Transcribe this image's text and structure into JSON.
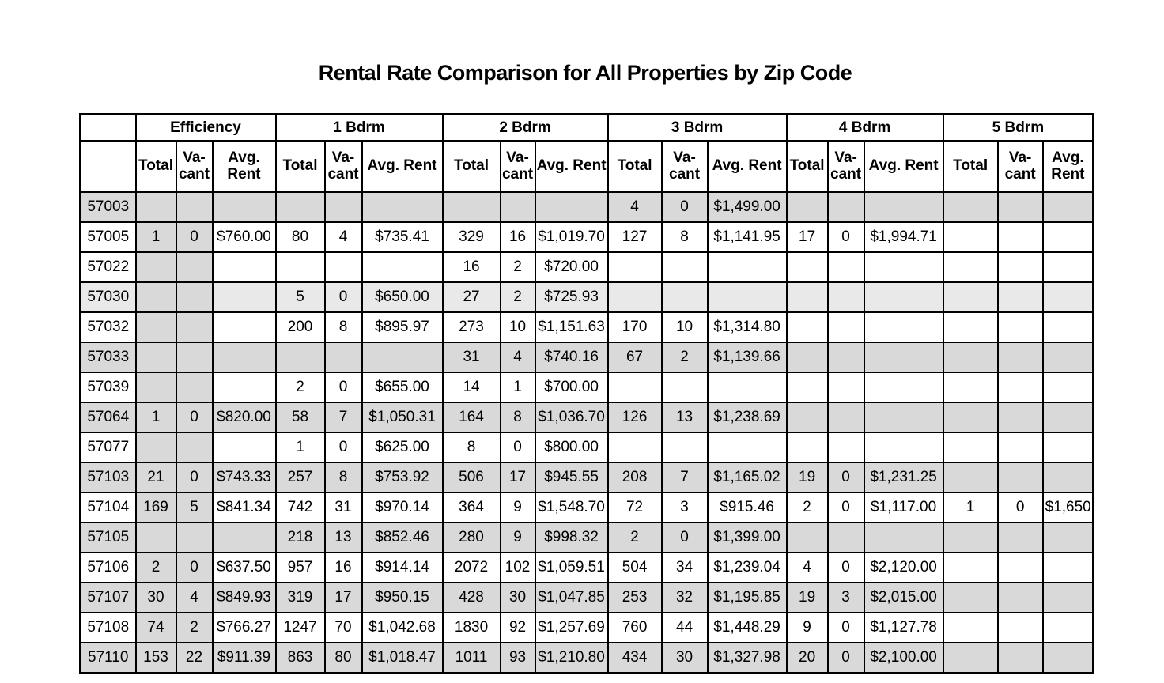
{
  "title": "Rental Rate Comparison for All Properties by Zip Code",
  "colors": {
    "row_gray": "#d9d9d9",
    "row_light_gray": "#e9e9e9",
    "row_white": "#ffffff",
    "border": "#000000",
    "text": "#000000"
  },
  "table": {
    "groups": [
      {
        "label": "Efficiency"
      },
      {
        "label": "1 Bdrm"
      },
      {
        "label": "2 Bdrm"
      },
      {
        "label": "3 Bdrm"
      },
      {
        "label": "4 Bdrm"
      },
      {
        "label": "5 Bdrm"
      }
    ],
    "subheaders": [
      "Total",
      "Va-\ncant",
      "Avg.\nRent",
      "Total",
      "Va-\ncant",
      "Avg. Rent",
      "Total",
      "Va-\ncant",
      "Avg. Rent",
      "Total",
      "Va-\ncant",
      "Avg. Rent",
      "Total",
      "Va-\ncant",
      "Avg. Rent",
      "Total",
      "Va-\ncant",
      "Avg.\nRent"
    ],
    "rows": [
      {
        "zip": "57003",
        "shade": "gray",
        "cells": [
          "",
          "",
          "",
          "",
          "",
          "",
          "",
          "",
          "",
          "4",
          "0",
          "$1,499.00",
          "",
          "",
          "",
          "",
          "",
          ""
        ]
      },
      {
        "zip": "57005",
        "shade": "white",
        "cells": [
          "1",
          "0",
          "$760.00",
          "80",
          "4",
          "$735.41",
          "329",
          "16",
          "$1,019.70",
          "127",
          "8",
          "$1,141.95",
          "17",
          "0",
          "$1,994.71",
          "",
          "",
          ""
        ]
      },
      {
        "zip": "57022",
        "shade": "white",
        "cells": [
          "",
          "",
          "",
          "",
          "",
          "",
          "16",
          "2",
          "$720.00",
          "",
          "",
          "",
          "",
          "",
          "",
          "",
          "",
          ""
        ]
      },
      {
        "zip": "57030",
        "shade": "light",
        "cells": [
          "",
          "",
          "",
          "5",
          "0",
          "$650.00",
          "27",
          "2",
          "$725.93",
          "",
          "",
          "",
          "",
          "",
          "",
          "",
          "",
          ""
        ]
      },
      {
        "zip": "57032",
        "shade": "white",
        "cells": [
          "",
          "",
          "",
          "200",
          "8",
          "$895.97",
          "273",
          "10",
          "$1,151.63",
          "170",
          "10",
          "$1,314.80",
          "",
          "",
          "",
          "",
          "",
          ""
        ]
      },
      {
        "zip": "57033",
        "shade": "gray",
        "cells": [
          "",
          "",
          "",
          "",
          "",
          "",
          "31",
          "4",
          "$740.16",
          "67",
          "2",
          "$1,139.66",
          "",
          "",
          "",
          "",
          "",
          ""
        ]
      },
      {
        "zip": "57039",
        "shade": "white",
        "cells": [
          "",
          "",
          "",
          "2",
          "0",
          "$655.00",
          "14",
          "1",
          "$700.00",
          "",
          "",
          "",
          "",
          "",
          "",
          "",
          "",
          ""
        ]
      },
      {
        "zip": "57064",
        "shade": "gray",
        "cells": [
          "1",
          "0",
          "$820.00",
          "58",
          "7",
          "$1,050.31",
          "164",
          "8",
          "$1,036.70",
          "126",
          "13",
          "$1,238.69",
          "",
          "",
          "",
          "",
          "",
          ""
        ]
      },
      {
        "zip": "57077",
        "shade": "white",
        "cells": [
          "",
          "",
          "",
          "1",
          "0",
          "$625.00",
          "8",
          "0",
          "$800.00",
          "",
          "",
          "",
          "",
          "",
          "",
          "",
          "",
          ""
        ]
      },
      {
        "zip": "57103",
        "shade": "gray",
        "cells": [
          "21",
          "0",
          "$743.33",
          "257",
          "8",
          "$753.92",
          "506",
          "17",
          "$945.55",
          "208",
          "7",
          "$1,165.02",
          "19",
          "0",
          "$1,231.25",
          "",
          "",
          ""
        ]
      },
      {
        "zip": "57104",
        "shade": "white",
        "cells": [
          "169",
          "5",
          "$841.34",
          "742",
          "31",
          "$970.14",
          "364",
          "9",
          "$1,548.70",
          "72",
          "3",
          "$915.46",
          "2",
          "0",
          "$1,117.00",
          "1",
          "0",
          "$1,650"
        ]
      },
      {
        "zip": "57105",
        "shade": "gray",
        "cells": [
          "",
          "",
          "",
          "218",
          "13",
          "$852.46",
          "280",
          "9",
          "$998.32",
          "2",
          "0",
          "$1,399.00",
          "",
          "",
          "",
          "",
          "",
          ""
        ]
      },
      {
        "zip": "57106",
        "shade": "white",
        "cells": [
          "2",
          "0",
          "$637.50",
          "957",
          "16",
          "$914.14",
          "2072",
          "102",
          "$1,059.51",
          "504",
          "34",
          "$1,239.04",
          "4",
          "0",
          "$2,120.00",
          "",
          "",
          ""
        ]
      },
      {
        "zip": "57107",
        "shade": "gray",
        "cells": [
          "30",
          "4",
          "$849.93",
          "319",
          "17",
          "$950.15",
          "428",
          "30",
          "$1,047.85",
          "253",
          "32",
          "$1,195.85",
          "19",
          "3",
          "$2,015.00",
          "",
          "",
          ""
        ]
      },
      {
        "zip": "57108",
        "shade": "white",
        "cells": [
          "74",
          "2",
          "$766.27",
          "1247",
          "70",
          "$1,042.68",
          "1830",
          "92",
          "$1,257.69",
          "760",
          "44",
          "$1,448.29",
          "9",
          "0",
          "$1,127.78",
          "",
          "",
          ""
        ]
      },
      {
        "zip": "57110",
        "shade": "gray",
        "cells": [
          "153",
          "22",
          "$911.39",
          "863",
          "80",
          "$1,018.47",
          "1011",
          "93",
          "$1,210.80",
          "434",
          "30",
          "$1,327.98",
          "20",
          "0",
          "$2,100.00",
          "",
          "",
          ""
        ]
      }
    ]
  }
}
